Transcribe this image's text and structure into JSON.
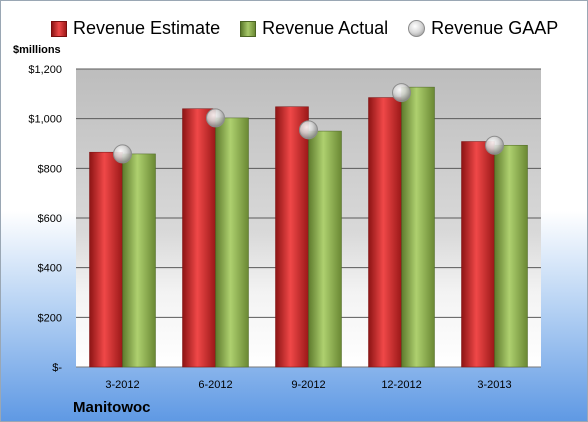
{
  "legend": {
    "estimate": "Revenue Estimate",
    "actual": "Revenue Actual",
    "gaap": "Revenue GAAP"
  },
  "unit_label": "$millions",
  "company": "Manitowoc",
  "colors": {
    "estimate": "#d42a2a",
    "actual": "#8fb04f",
    "gaap": "#c8c8c8"
  },
  "chart_data": {
    "type": "bar",
    "categories": [
      "3-2012",
      "6-2012",
      "9-2012",
      "12-2012",
      "3-2013"
    ],
    "series": [
      {
        "name": "Revenue Estimate",
        "values": [
          865,
          1040,
          1048,
          1085,
          908
        ]
      },
      {
        "name": "Revenue Actual",
        "values": [
          858,
          1003,
          950,
          1127,
          893
        ]
      },
      {
        "name": "Revenue GAAP",
        "values": [
          858,
          1003,
          955,
          1105,
          893
        ]
      }
    ],
    "ylabel": "$millions",
    "ylim": [
      0,
      1200
    ],
    "yticks": [
      0,
      200,
      400,
      600,
      800,
      1000,
      1200
    ],
    "ytick_labels": [
      "$-",
      "$200",
      "$400",
      "$600",
      "$800",
      "$1,000",
      "$1,200"
    ],
    "grid": true,
    "legend_position": "top"
  }
}
